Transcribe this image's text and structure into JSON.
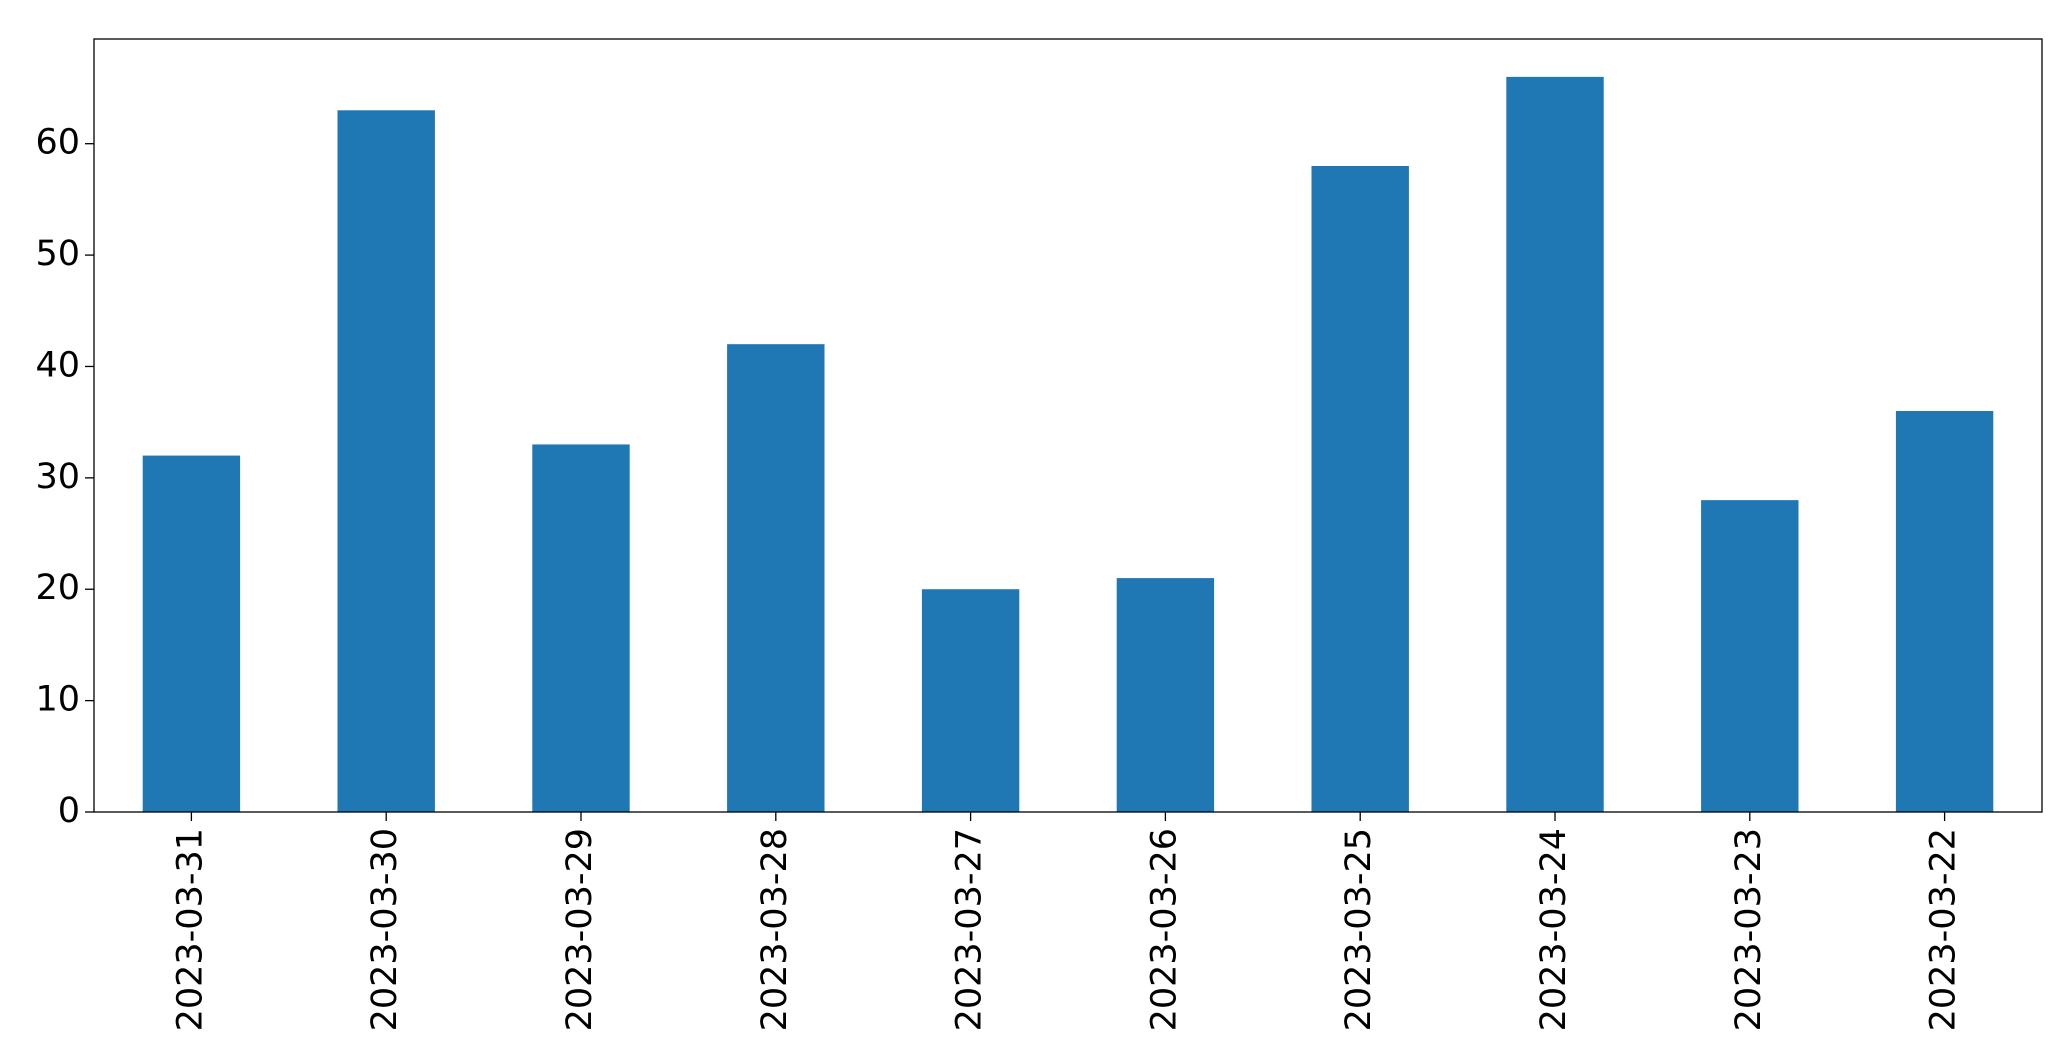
{
  "chart_data": {
    "type": "bar",
    "categories": [
      "2023-03-31",
      "2023-03-30",
      "2023-03-29",
      "2023-03-28",
      "2023-03-27",
      "2023-03-26",
      "2023-03-25",
      "2023-03-24",
      "2023-03-23",
      "2023-03-22"
    ],
    "values": [
      32,
      63,
      33,
      42,
      20,
      21,
      58,
      66,
      28,
      36
    ],
    "color": "#1f77b4",
    "ylim": [
      0,
      69.4
    ],
    "yticks": [
      0,
      10,
      20,
      30,
      40,
      50,
      60
    ],
    "grid": false
  }
}
